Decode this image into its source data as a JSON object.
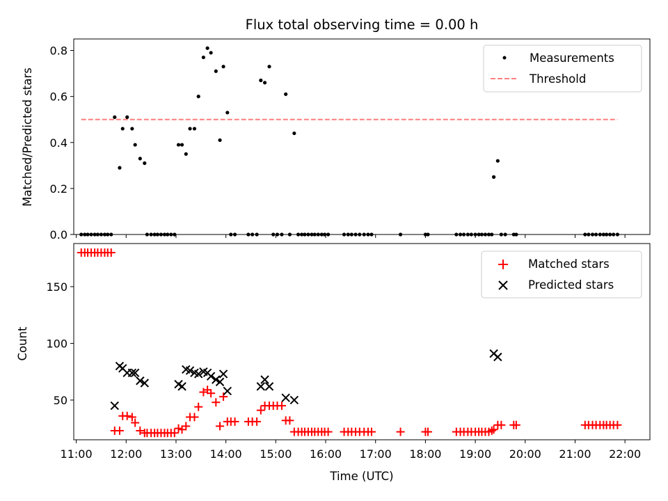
{
  "chart_data": [
    {
      "type": "scatter",
      "title": "Flux total observing time = 0.00 h",
      "xlabel": "",
      "ylabel": "Matched/Predicted stars",
      "xlim": [
        10.95,
        22.5
      ],
      "ylim": [
        0,
        0.85
      ],
      "yticks": [
        0.0,
        0.2,
        0.4,
        0.6,
        0.8
      ],
      "ytick_labels": [
        "0.0",
        "0.2",
        "0.4",
        "0.6",
        "0.8"
      ],
      "legend_position": "upper right",
      "series": [
        {
          "name": "Measurements",
          "marker": "dot",
          "color": "#000000",
          "points": [
            [
              11.1,
              0
            ],
            [
              11.17,
              0
            ],
            [
              11.23,
              0
            ],
            [
              11.3,
              0
            ],
            [
              11.37,
              0
            ],
            [
              11.43,
              0
            ],
            [
              11.5,
              0
            ],
            [
              11.57,
              0
            ],
            [
              11.63,
              0
            ],
            [
              11.7,
              0
            ],
            [
              11.77,
              0.51
            ],
            [
              11.87,
              0.29
            ],
            [
              11.93,
              0.46
            ],
            [
              12.02,
              0.51
            ],
            [
              12.12,
              0.46
            ],
            [
              12.18,
              0.39
            ],
            [
              12.28,
              0.33
            ],
            [
              12.37,
              0.31
            ],
            [
              12.42,
              0
            ],
            [
              12.5,
              0
            ],
            [
              12.57,
              0
            ],
            [
              12.63,
              0
            ],
            [
              12.7,
              0
            ],
            [
              12.77,
              0
            ],
            [
              12.83,
              0
            ],
            [
              12.9,
              0
            ],
            [
              12.97,
              0
            ],
            [
              13.05,
              0.39
            ],
            [
              13.12,
              0.39
            ],
            [
              13.2,
              0.35
            ],
            [
              13.28,
              0.46
            ],
            [
              13.37,
              0.46
            ],
            [
              13.45,
              0.6
            ],
            [
              13.55,
              0.77
            ],
            [
              13.63,
              0.81
            ],
            [
              13.7,
              0.79
            ],
            [
              13.8,
              0.71
            ],
            [
              13.88,
              0.41
            ],
            [
              13.95,
              0.73
            ],
            [
              14.03,
              0.53
            ],
            [
              14.1,
              0
            ],
            [
              14.18,
              0
            ],
            [
              14.45,
              0
            ],
            [
              14.53,
              0
            ],
            [
              14.62,
              0
            ],
            [
              14.7,
              0.67
            ],
            [
              14.78,
              0.66
            ],
            [
              14.87,
              0.73
            ],
            [
              14.95,
              0
            ],
            [
              15.03,
              0
            ],
            [
              15.12,
              0
            ],
            [
              15.2,
              0.61
            ],
            [
              15.28,
              0
            ],
            [
              15.37,
              0.44
            ],
            [
              15.45,
              0
            ],
            [
              15.52,
              0
            ],
            [
              15.58,
              0
            ],
            [
              15.65,
              0
            ],
            [
              15.72,
              0
            ],
            [
              15.78,
              0
            ],
            [
              15.85,
              0
            ],
            [
              15.92,
              0
            ],
            [
              15.98,
              0
            ],
            [
              16.05,
              0
            ],
            [
              16.37,
              0
            ],
            [
              16.45,
              0
            ],
            [
              16.52,
              0
            ],
            [
              16.6,
              0
            ],
            [
              16.68,
              0
            ],
            [
              16.77,
              0
            ],
            [
              16.85,
              0
            ],
            [
              16.92,
              0
            ],
            [
              17.5,
              0
            ],
            [
              18.0,
              0
            ],
            [
              18.05,
              0
            ],
            [
              18.62,
              0
            ],
            [
              18.7,
              0
            ],
            [
              18.77,
              0
            ],
            [
              18.85,
              0
            ],
            [
              18.92,
              0
            ],
            [
              19.0,
              0
            ],
            [
              19.07,
              0
            ],
            [
              19.13,
              0
            ],
            [
              19.2,
              0
            ],
            [
              19.27,
              0
            ],
            [
              19.33,
              0
            ],
            [
              19.37,
              0.25
            ],
            [
              19.45,
              0.32
            ],
            [
              19.52,
              0
            ],
            [
              19.6,
              0
            ],
            [
              19.77,
              0
            ],
            [
              19.82,
              0
            ],
            [
              21.2,
              0
            ],
            [
              21.27,
              0
            ],
            [
              21.35,
              0
            ],
            [
              21.42,
              0
            ],
            [
              21.5,
              0
            ],
            [
              21.57,
              0
            ],
            [
              21.63,
              0
            ],
            [
              21.7,
              0
            ],
            [
              21.77,
              0
            ],
            [
              21.85,
              0
            ]
          ]
        },
        {
          "name": "Threshold",
          "type": "line",
          "style": "dashed",
          "color": "#ff7f7f",
          "points": [
            [
              11.1,
              0.5
            ],
            [
              21.85,
              0.5
            ]
          ]
        }
      ]
    },
    {
      "type": "scatter",
      "title": "",
      "xlabel": "Time (UTC)",
      "ylabel": "Count",
      "xlim": [
        10.95,
        22.5
      ],
      "ylim": [
        15,
        188
      ],
      "yticks": [
        50,
        100,
        150
      ],
      "ytick_labels": [
        "50",
        "100",
        "150"
      ],
      "xticks": [
        11,
        12,
        13,
        14,
        15,
        16,
        17,
        18,
        19,
        20,
        21,
        22
      ],
      "xtick_labels": [
        "11:00",
        "12:00",
        "13:00",
        "14:00",
        "15:00",
        "16:00",
        "17:00",
        "18:00",
        "19:00",
        "20:00",
        "21:00",
        "22:00"
      ],
      "legend_position": "upper right",
      "series": [
        {
          "name": "Matched stars",
          "marker": "plus",
          "color": "#ff0000",
          "points": [
            [
              11.1,
              180
            ],
            [
              11.17,
              180
            ],
            [
              11.23,
              180
            ],
            [
              11.3,
              180
            ],
            [
              11.37,
              180
            ],
            [
              11.43,
              180
            ],
            [
              11.5,
              180
            ],
            [
              11.57,
              180
            ],
            [
              11.63,
              180
            ],
            [
              11.7,
              180
            ],
            [
              11.77,
              23
            ],
            [
              11.87,
              23
            ],
            [
              11.93,
              36
            ],
            [
              12.02,
              36
            ],
            [
              12.12,
              35
            ],
            [
              12.18,
              30
            ],
            [
              12.28,
              23
            ],
            [
              12.37,
              21
            ],
            [
              12.42,
              21
            ],
            [
              12.5,
              21
            ],
            [
              12.57,
              21
            ],
            [
              12.63,
              21
            ],
            [
              12.7,
              21
            ],
            [
              12.77,
              21
            ],
            [
              12.83,
              21
            ],
            [
              12.9,
              21
            ],
            [
              12.97,
              21
            ],
            [
              13.05,
              25
            ],
            [
              13.12,
              24
            ],
            [
              13.2,
              27
            ],
            [
              13.28,
              35
            ],
            [
              13.37,
              35
            ],
            [
              13.45,
              44
            ],
            [
              13.55,
              57
            ],
            [
              13.63,
              59
            ],
            [
              13.7,
              56
            ],
            [
              13.8,
              48
            ],
            [
              13.88,
              27
            ],
            [
              13.95,
              53
            ],
            [
              14.03,
              31
            ],
            [
              14.1,
              31
            ],
            [
              14.18,
              31
            ],
            [
              14.45,
              31
            ],
            [
              14.53,
              31
            ],
            [
              14.62,
              31
            ],
            [
              14.7,
              41
            ],
            [
              14.78,
              45
            ],
            [
              14.87,
              45
            ],
            [
              14.95,
              45
            ],
            [
              15.03,
              45
            ],
            [
              15.12,
              45
            ],
            [
              15.2,
              32
            ],
            [
              15.28,
              32
            ],
            [
              15.37,
              22
            ],
            [
              15.45,
              22
            ],
            [
              15.52,
              22
            ],
            [
              15.58,
              22
            ],
            [
              15.65,
              22
            ],
            [
              15.72,
              22
            ],
            [
              15.78,
              22
            ],
            [
              15.85,
              22
            ],
            [
              15.92,
              22
            ],
            [
              15.98,
              22
            ],
            [
              16.05,
              22
            ],
            [
              16.37,
              22
            ],
            [
              16.45,
              22
            ],
            [
              16.52,
              22
            ],
            [
              16.6,
              22
            ],
            [
              16.68,
              22
            ],
            [
              16.77,
              22
            ],
            [
              16.85,
              22
            ],
            [
              16.92,
              22
            ],
            [
              17.5,
              22
            ],
            [
              18.0,
              22
            ],
            [
              18.05,
              22
            ],
            [
              18.62,
              22
            ],
            [
              18.7,
              22
            ],
            [
              18.77,
              22
            ],
            [
              18.85,
              22
            ],
            [
              18.92,
              22
            ],
            [
              19.0,
              22
            ],
            [
              19.07,
              22
            ],
            [
              19.13,
              22
            ],
            [
              19.2,
              22
            ],
            [
              19.27,
              22
            ],
            [
              19.33,
              23
            ],
            [
              19.37,
              24
            ],
            [
              19.45,
              28
            ],
            [
              19.52,
              28
            ],
            [
              19.77,
              28
            ],
            [
              19.82,
              28
            ],
            [
              21.2,
              28
            ],
            [
              21.27,
              28
            ],
            [
              21.35,
              28
            ],
            [
              21.42,
              28
            ],
            [
              21.5,
              28
            ],
            [
              21.57,
              28
            ],
            [
              21.63,
              28
            ],
            [
              21.7,
              28
            ],
            [
              21.77,
              28
            ],
            [
              21.85,
              28
            ]
          ]
        },
        {
          "name": "Predicted stars",
          "marker": "x",
          "color": "#000000",
          "points": [
            [
              11.77,
              45
            ],
            [
              11.87,
              80
            ],
            [
              11.93,
              78
            ],
            [
              12.02,
              74
            ],
            [
              12.12,
              74
            ],
            [
              12.18,
              74
            ],
            [
              12.28,
              67
            ],
            [
              12.37,
              65
            ],
            [
              13.05,
              64
            ],
            [
              13.12,
              62
            ],
            [
              13.2,
              77
            ],
            [
              13.28,
              76
            ],
            [
              13.37,
              74
            ],
            [
              13.45,
              73
            ],
            [
              13.55,
              75
            ],
            [
              13.63,
              74
            ],
            [
              13.7,
              71
            ],
            [
              13.8,
              68
            ],
            [
              13.88,
              66
            ],
            [
              13.95,
              73
            ],
            [
              14.03,
              58
            ],
            [
              14.7,
              62
            ],
            [
              14.78,
              68
            ],
            [
              14.87,
              62
            ],
            [
              15.2,
              52
            ],
            [
              15.37,
              50
            ],
            [
              19.37,
              91
            ],
            [
              19.45,
              88
            ]
          ]
        }
      ]
    }
  ]
}
